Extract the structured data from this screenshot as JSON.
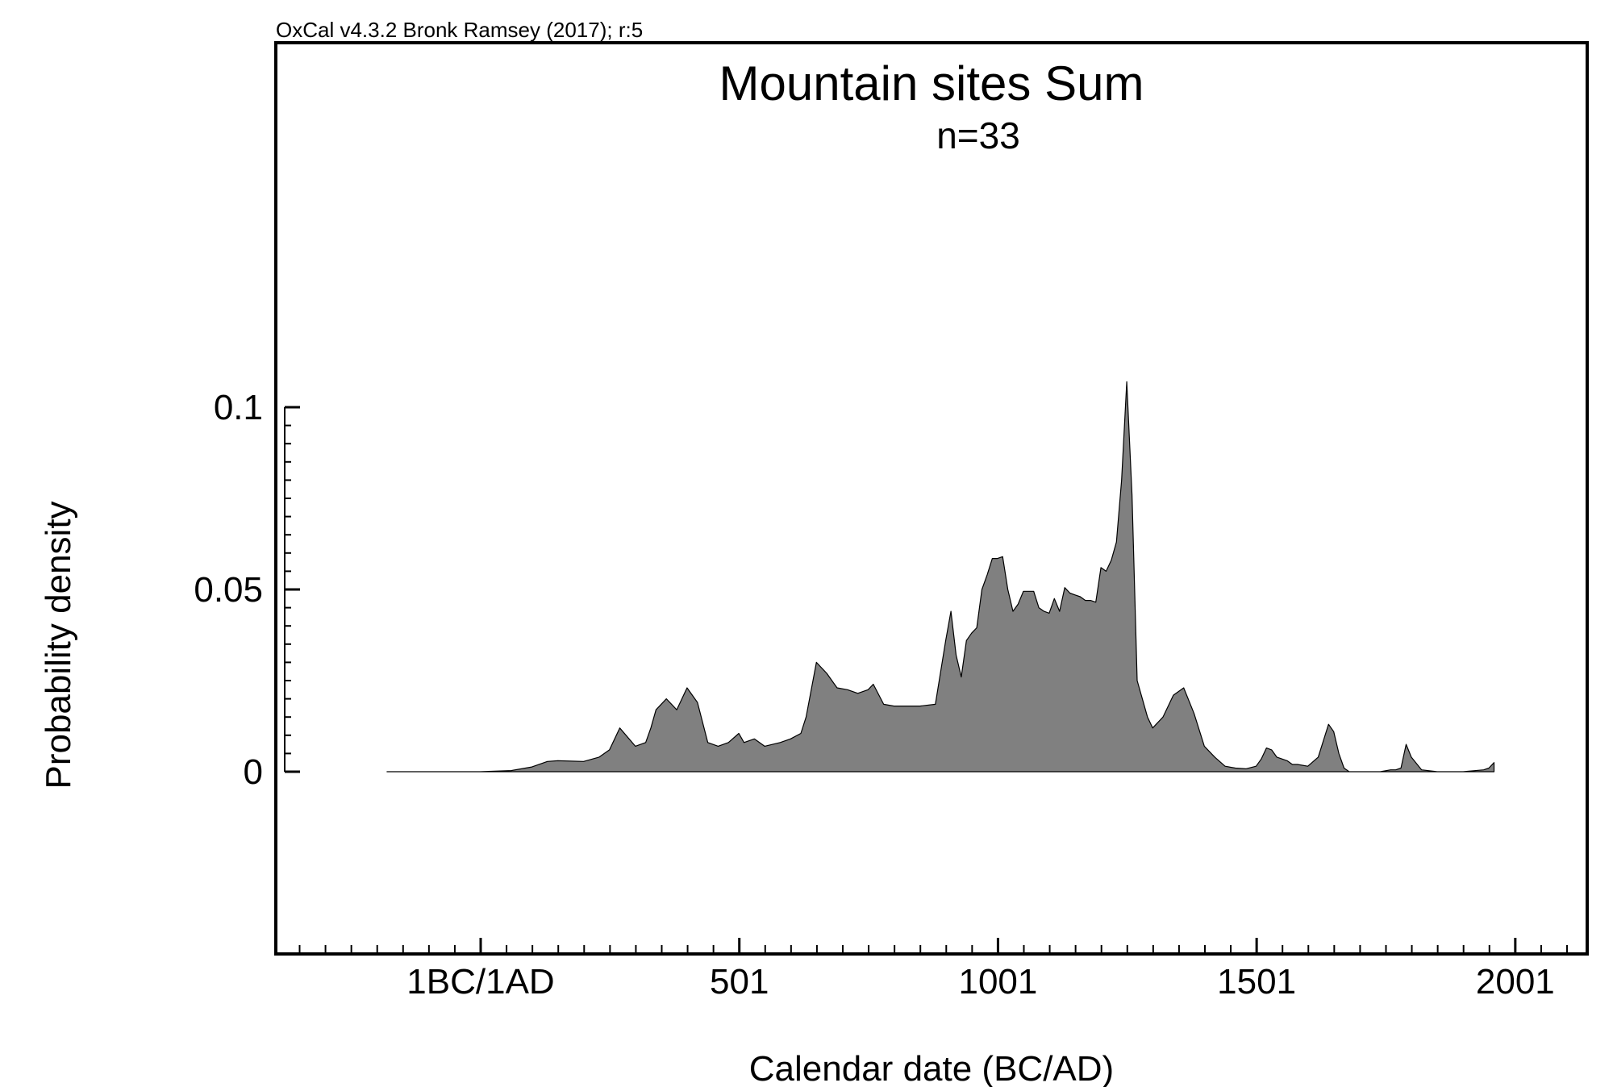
{
  "header_note": "OxCal v4.3.2 Bronk Ramsey (2017); r:5",
  "chart_data": {
    "type": "area",
    "title": "Mountain sites Sum",
    "subtitle": "n=33",
    "xlabel": "Calendar date (BC/AD)",
    "ylabel": "Probability density",
    "xlim": [
      -395,
      2140
    ],
    "ylim": [
      -0.05,
      0.2
    ],
    "x_ticks": [
      {
        "value": 1,
        "label": "1BC/1AD"
      },
      {
        "value": 501,
        "label": "501"
      },
      {
        "value": 1001,
        "label": "1001"
      },
      {
        "value": 1501,
        "label": "1501"
      },
      {
        "value": 2001,
        "label": "2001"
      }
    ],
    "y_ticks": [
      {
        "value": 0,
        "label": "0"
      },
      {
        "value": 0.05,
        "label": "0.05"
      },
      {
        "value": 0.1,
        "label": "0.1"
      }
    ],
    "grid": false,
    "fill_color": "#808080",
    "series": [
      {
        "x": [
          -180,
          0,
          60,
          100,
          130,
          150,
          200,
          230,
          250,
          270,
          300,
          320,
          330,
          340,
          360,
          380,
          400,
          420,
          440,
          460,
          480,
          500,
          510,
          530,
          550,
          580,
          600,
          620,
          630,
          650,
          670,
          690,
          710,
          730,
          750,
          760,
          780,
          800,
          820,
          850,
          880,
          900,
          910,
          920,
          930,
          940,
          950,
          960,
          970,
          980,
          990,
          1000,
          1010,
          1020,
          1030,
          1040,
          1050,
          1060,
          1070,
          1080,
          1090,
          1100,
          1110,
          1120,
          1130,
          1140,
          1150,
          1160,
          1170,
          1180,
          1190,
          1200,
          1210,
          1220,
          1230,
          1240,
          1250,
          1260,
          1270,
          1280,
          1290,
          1300,
          1320,
          1340,
          1360,
          1380,
          1400,
          1420,
          1440,
          1460,
          1480,
          1500,
          1510,
          1520,
          1530,
          1540,
          1550,
          1560,
          1570,
          1580,
          1600,
          1620,
          1640,
          1650,
          1660,
          1670,
          1680,
          1700,
          1720,
          1740,
          1760,
          1770,
          1780,
          1790,
          1800,
          1820,
          1850,
          1900,
          1940,
          1950,
          1960
        ],
        "y": [
          0,
          0,
          0.0003,
          0.0013,
          0.0028,
          0.003,
          0.0028,
          0.004,
          0.006,
          0.012,
          0.007,
          0.008,
          0.012,
          0.017,
          0.02,
          0.017,
          0.023,
          0.019,
          0.008,
          0.007,
          0.008,
          0.0105,
          0.008,
          0.009,
          0.007,
          0.008,
          0.009,
          0.0105,
          0.015,
          0.03,
          0.027,
          0.023,
          0.0225,
          0.0215,
          0.0225,
          0.024,
          0.0185,
          0.018,
          0.018,
          0.018,
          0.0185,
          0.036,
          0.044,
          0.032,
          0.026,
          0.036,
          0.038,
          0.0395,
          0.05,
          0.054,
          0.0585,
          0.0585,
          0.059,
          0.05,
          0.044,
          0.046,
          0.0495,
          0.0495,
          0.0495,
          0.045,
          0.044,
          0.0435,
          0.0475,
          0.044,
          0.0505,
          0.049,
          0.0485,
          0.048,
          0.047,
          0.047,
          0.0465,
          0.056,
          0.055,
          0.058,
          0.063,
          0.08,
          0.107,
          0.076,
          0.025,
          0.02,
          0.015,
          0.012,
          0.015,
          0.021,
          0.023,
          0.016,
          0.007,
          0.004,
          0.0015,
          0.001,
          0.0008,
          0.0015,
          0.0035,
          0.0065,
          0.006,
          0.004,
          0.0035,
          0.003,
          0.002,
          0.002,
          0.0015,
          0.004,
          0.013,
          0.011,
          0.005,
          0.001,
          0,
          0,
          0,
          0,
          0.0005,
          0.0005,
          0.001,
          0.0075,
          0.004,
          0.0005,
          0,
          0,
          0.0005,
          0.001,
          0.0025
        ]
      }
    ]
  }
}
